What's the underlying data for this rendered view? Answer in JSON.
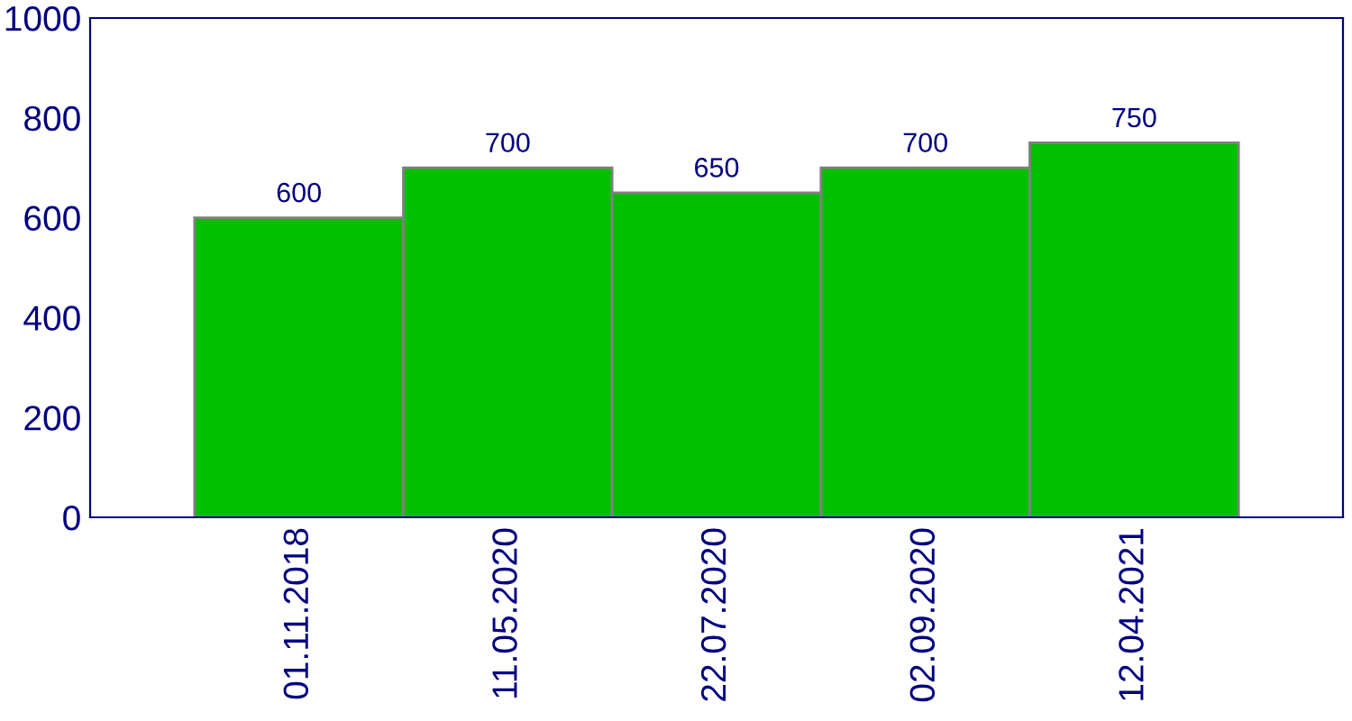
{
  "chart_data": {
    "type": "bar",
    "categories": [
      "01.11.2018",
      "11.05.2020",
      "22.07.2020",
      "02.09.2020",
      "12.04.2021"
    ],
    "values": [
      600,
      700,
      650,
      700,
      750
    ],
    "color": "#00c000",
    "ylim": [
      0,
      1000
    ],
    "yticks": [
      0,
      200,
      400,
      600,
      800,
      1000
    ],
    "data_labels": true,
    "grid": false,
    "legend": false
  }
}
